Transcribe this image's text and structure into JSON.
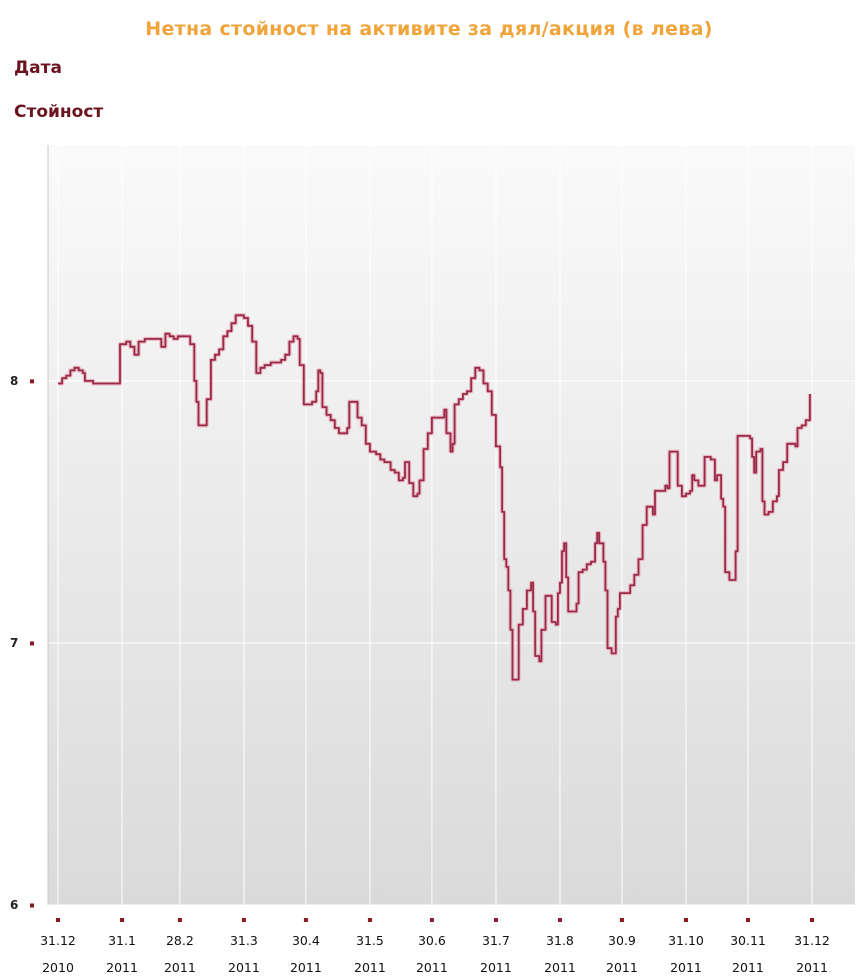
{
  "title": "Нетна стойност на активите за дял/акция (в лева)",
  "info": {
    "date_label": "Дата",
    "value_label": "Стойност"
  },
  "chart_data": {
    "type": "line",
    "title": "Нетна стойност на активите за дял/акция (в лева)",
    "xlabel": "",
    "ylabel": "",
    "ylim": [
      6,
      8.9
    ],
    "yticks": [
      6,
      7,
      8
    ],
    "ytick_labels": [
      "6",
      "7",
      "8"
    ],
    "xticks": [
      {
        "day": 0,
        "label": [
          "31.12",
          "2010"
        ]
      },
      {
        "day": 31,
        "label": [
          "31.1",
          "2011"
        ]
      },
      {
        "day": 59,
        "label": [
          "28.2",
          "2011"
        ]
      },
      {
        "day": 90,
        "label": [
          "31.3",
          "2011"
        ]
      },
      {
        "day": 120,
        "label": [
          "30.4",
          "2011"
        ]
      },
      {
        "day": 151,
        "label": [
          "31.5",
          "2011"
        ]
      },
      {
        "day": 181,
        "label": [
          "30.6",
          "2011"
        ]
      },
      {
        "day": 212,
        "label": [
          "31.7",
          "2011"
        ]
      },
      {
        "day": 243,
        "label": [
          "31.8",
          "2011"
        ]
      },
      {
        "day": 273,
        "label": [
          "30.9",
          "2011"
        ]
      },
      {
        "day": 304,
        "label": [
          "31.10",
          "2011"
        ]
      },
      {
        "day": 334,
        "label": [
          "30.11",
          "2011"
        ]
      },
      {
        "day": 365,
        "label": [
          "31.12",
          "2011"
        ]
      }
    ],
    "grid": true,
    "legend": "none",
    "series": [
      {
        "color": "#9a2a48",
        "points": [
          [
            0,
            7.99
          ],
          [
            2,
            8.01
          ],
          [
            4,
            8.02
          ],
          [
            6,
            8.04
          ],
          [
            8,
            8.05
          ],
          [
            10,
            8.04
          ],
          [
            12,
            8.03
          ],
          [
            13,
            8.0
          ],
          [
            17,
            7.99
          ],
          [
            28,
            7.99
          ],
          [
            30,
            8.14
          ],
          [
            33,
            8.15
          ],
          [
            35,
            8.13
          ],
          [
            37,
            8.1
          ],
          [
            39,
            8.15
          ],
          [
            42,
            8.16
          ],
          [
            45,
            8.16
          ],
          [
            48,
            8.16
          ],
          [
            50,
            8.13
          ],
          [
            52,
            8.18
          ],
          [
            54,
            8.17
          ],
          [
            56,
            8.16
          ],
          [
            58,
            8.17
          ],
          [
            62,
            8.17
          ],
          [
            64,
            8.14
          ],
          [
            66,
            8.0
          ],
          [
            67,
            7.92
          ],
          [
            68,
            7.83
          ],
          [
            70,
            7.83
          ],
          [
            72,
            7.93
          ],
          [
            74,
            8.08
          ],
          [
            76,
            8.1
          ],
          [
            78,
            8.12
          ],
          [
            80,
            8.17
          ],
          [
            82,
            8.19
          ],
          [
            84,
            8.22
          ],
          [
            86,
            8.25
          ],
          [
            88,
            8.25
          ],
          [
            90,
            8.24
          ],
          [
            92,
            8.21
          ],
          [
            94,
            8.15
          ],
          [
            96,
            8.03
          ],
          [
            98,
            8.05
          ],
          [
            100,
            8.06
          ],
          [
            103,
            8.07
          ],
          [
            106,
            8.07
          ],
          [
            108,
            8.08
          ],
          [
            110,
            8.1
          ],
          [
            112,
            8.15
          ],
          [
            114,
            8.17
          ],
          [
            116,
            8.16
          ],
          [
            117,
            8.06
          ],
          [
            119,
            7.91
          ],
          [
            121,
            7.91
          ],
          [
            123,
            7.92
          ],
          [
            125,
            7.96
          ],
          [
            126,
            8.04
          ],
          [
            127,
            8.03
          ],
          [
            128,
            7.9
          ],
          [
            130,
            7.87
          ],
          [
            132,
            7.85
          ],
          [
            134,
            7.82
          ],
          [
            136,
            7.8
          ],
          [
            138,
            7.8
          ],
          [
            140,
            7.82
          ],
          [
            141,
            7.92
          ],
          [
            143,
            7.92
          ],
          [
            145,
            7.86
          ],
          [
            147,
            7.83
          ],
          [
            149,
            7.76
          ],
          [
            151,
            7.73
          ],
          [
            154,
            7.72
          ],
          [
            156,
            7.7
          ],
          [
            158,
            7.69
          ],
          [
            161,
            7.66
          ],
          [
            163,
            7.65
          ],
          [
            165,
            7.62
          ],
          [
            167,
            7.63
          ],
          [
            168,
            7.69
          ],
          [
            170,
            7.61
          ],
          [
            172,
            7.56
          ],
          [
            174,
            7.57
          ],
          [
            175,
            7.62
          ],
          [
            177,
            7.74
          ],
          [
            179,
            7.8
          ],
          [
            181,
            7.86
          ],
          [
            184,
            7.86
          ],
          [
            187,
            7.89
          ],
          [
            188,
            7.8
          ],
          [
            190,
            7.73
          ],
          [
            191,
            7.76
          ],
          [
            192,
            7.91
          ],
          [
            194,
            7.93
          ],
          [
            196,
            7.95
          ],
          [
            198,
            7.96
          ],
          [
            200,
            8.01
          ],
          [
            202,
            8.05
          ],
          [
            204,
            8.04
          ],
          [
            206,
            7.99
          ],
          [
            208,
            7.96
          ],
          [
            210,
            7.87
          ],
          [
            212,
            7.75
          ],
          [
            214,
            7.67
          ],
          [
            215,
            7.5
          ],
          [
            216,
            7.32
          ],
          [
            217,
            7.29
          ],
          [
            218,
            7.2
          ],
          [
            219,
            7.05
          ],
          [
            220,
            6.86
          ],
          [
            222,
            6.86
          ],
          [
            223,
            7.07
          ],
          [
            225,
            7.13
          ],
          [
            227,
            7.2
          ],
          [
            229,
            7.23
          ],
          [
            230,
            7.12
          ],
          [
            231,
            6.95
          ],
          [
            233,
            6.93
          ],
          [
            234,
            7.05
          ],
          [
            236,
            7.18
          ],
          [
            238,
            7.18
          ],
          [
            239,
            7.08
          ],
          [
            241,
            7.07
          ],
          [
            242,
            7.19
          ],
          [
            243,
            7.23
          ],
          [
            244,
            7.35
          ],
          [
            245,
            7.38
          ],
          [
            246,
            7.25
          ],
          [
            247,
            7.12
          ],
          [
            249,
            7.12
          ],
          [
            251,
            7.15
          ],
          [
            252,
            7.27
          ],
          [
            254,
            7.28
          ],
          [
            256,
            7.3
          ],
          [
            258,
            7.31
          ],
          [
            260,
            7.38
          ],
          [
            261,
            7.42
          ],
          [
            262,
            7.38
          ],
          [
            264,
            7.31
          ],
          [
            265,
            7.2
          ],
          [
            266,
            6.98
          ],
          [
            268,
            6.96
          ],
          [
            269,
            6.96
          ],
          [
            270,
            7.1
          ],
          [
            271,
            7.13
          ],
          [
            272,
            7.19
          ],
          [
            274,
            7.19
          ],
          [
            277,
            7.22
          ],
          [
            279,
            7.26
          ],
          [
            281,
            7.32
          ],
          [
            283,
            7.45
          ],
          [
            285,
            7.52
          ],
          [
            287,
            7.52
          ],
          [
            288,
            7.49
          ],
          [
            289,
            7.58
          ],
          [
            292,
            7.58
          ],
          [
            294,
            7.6
          ],
          [
            295,
            7.59
          ],
          [
            296,
            7.73
          ],
          [
            298,
            7.73
          ],
          [
            300,
            7.6
          ],
          [
            302,
            7.56
          ],
          [
            304,
            7.57
          ],
          [
            306,
            7.58
          ],
          [
            307,
            7.64
          ],
          [
            308,
            7.62
          ],
          [
            310,
            7.6
          ],
          [
            312,
            7.6
          ],
          [
            313,
            7.71
          ],
          [
            316,
            7.7
          ],
          [
            318,
            7.62
          ],
          [
            319,
            7.64
          ],
          [
            321,
            7.55
          ],
          [
            322,
            7.52
          ],
          [
            323,
            7.27
          ],
          [
            325,
            7.24
          ],
          [
            327,
            7.24
          ],
          [
            328,
            7.35
          ],
          [
            329,
            7.79
          ],
          [
            332,
            7.79
          ],
          [
            335,
            7.78
          ],
          [
            336,
            7.71
          ],
          [
            337,
            7.65
          ],
          [
            338,
            7.73
          ],
          [
            340,
            7.74
          ],
          [
            341,
            7.54
          ],
          [
            342,
            7.49
          ],
          [
            344,
            7.5
          ],
          [
            346,
            7.54
          ],
          [
            348,
            7.56
          ],
          [
            349,
            7.66
          ],
          [
            351,
            7.69
          ],
          [
            353,
            7.76
          ],
          [
            356,
            7.76
          ],
          [
            357,
            7.75
          ],
          [
            358,
            7.82
          ],
          [
            360,
            7.83
          ],
          [
            362,
            7.85
          ],
          [
            364,
            7.95
          ]
        ]
      }
    ]
  }
}
